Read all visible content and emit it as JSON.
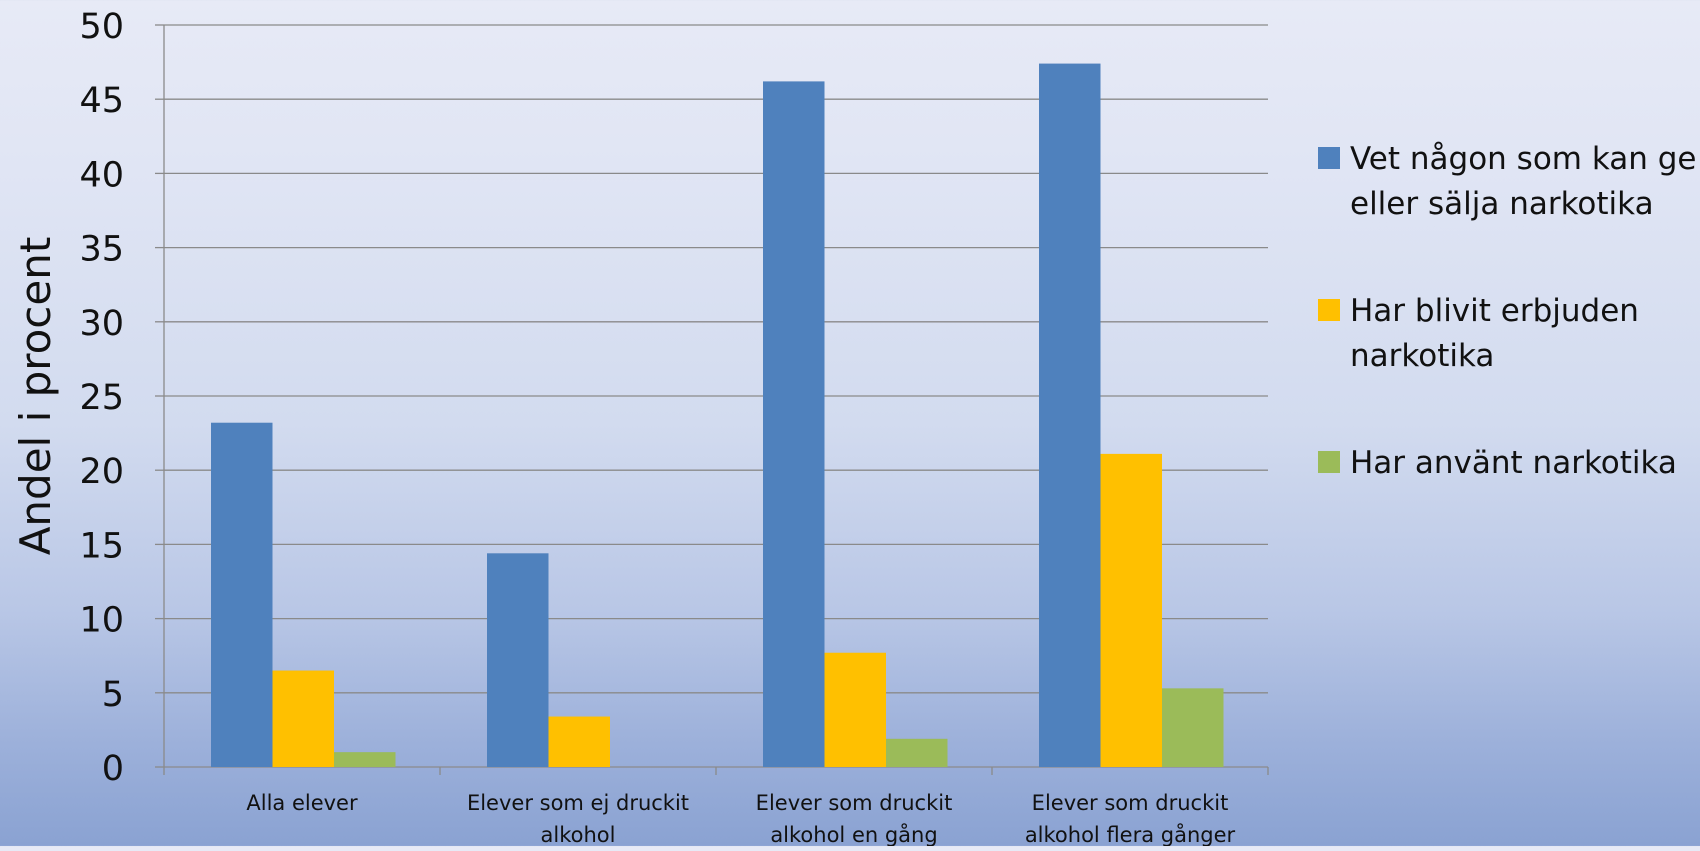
{
  "chart_data": {
    "type": "bar",
    "title": "",
    "xlabel": "",
    "ylabel": "Andel i procent",
    "ylim": [
      0,
      50
    ],
    "yticks": [
      0,
      5,
      10,
      15,
      20,
      25,
      30,
      35,
      40,
      45,
      50
    ],
    "grid": true,
    "legend_position": "right",
    "categories": [
      [
        "Alla elever"
      ],
      [
        "Elever som ej druckit",
        "alkohol"
      ],
      [
        "Elever som druckit",
        "alkohol en gång"
      ],
      [
        "Elever som druckit",
        "alkohol flera gånger"
      ]
    ],
    "series": [
      {
        "name": "Vet någon som kan ge eller sälja narkotika",
        "legend_lines": [
          "Vet någon som kan ge",
          "eller sälja narkotika"
        ],
        "color": "#4f81bd",
        "values": [
          23.2,
          14.4,
          46.2,
          47.4
        ]
      },
      {
        "name": "Har blivit erbjuden narkotika",
        "legend_lines": [
          "Har blivit erbjuden",
          "narkotika"
        ],
        "color": "#ffc000",
        "values": [
          6.5,
          3.4,
          7.7,
          21.1
        ]
      },
      {
        "name": "Har använt narkotika",
        "legend_lines": [
          "Har använt narkotika"
        ],
        "color": "#9bbb59",
        "values": [
          1.0,
          0,
          1.9,
          5.3
        ]
      }
    ]
  }
}
